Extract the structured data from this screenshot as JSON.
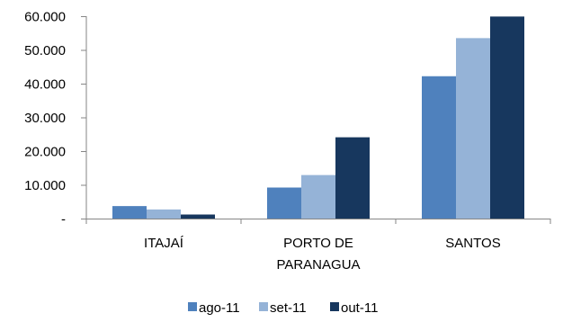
{
  "chart_data": {
    "type": "bar",
    "title": "",
    "xlabel": "",
    "ylabel": "",
    "categories": [
      [
        "ITAJAÍ"
      ],
      [
        "PORTO DE",
        "PARANAGUA"
      ],
      [
        "SANTOS"
      ]
    ],
    "series": [
      {
        "name": "ago-11",
        "color": "#4F81BD",
        "values": [
          3700,
          9200,
          42200
        ]
      },
      {
        "name": "set-11",
        "color": "#95B3D7",
        "values": [
          2700,
          12900,
          53500
        ]
      },
      {
        "name": "out-11",
        "color": "#17375E",
        "values": [
          1200,
          24100,
          59900
        ]
      }
    ],
    "ylim": [
      0,
      60000
    ],
    "yticks": [
      {
        "value": 0,
        "label": "-"
      },
      {
        "value": 10000,
        "label": "10.000"
      },
      {
        "value": 20000,
        "label": "20.000"
      },
      {
        "value": 30000,
        "label": "30.000"
      },
      {
        "value": 40000,
        "label": "40.000"
      },
      {
        "value": 50000,
        "label": "50.000"
      },
      {
        "value": 60000,
        "label": "60.000"
      }
    ],
    "grid": false,
    "legend_position": "bottom"
  }
}
